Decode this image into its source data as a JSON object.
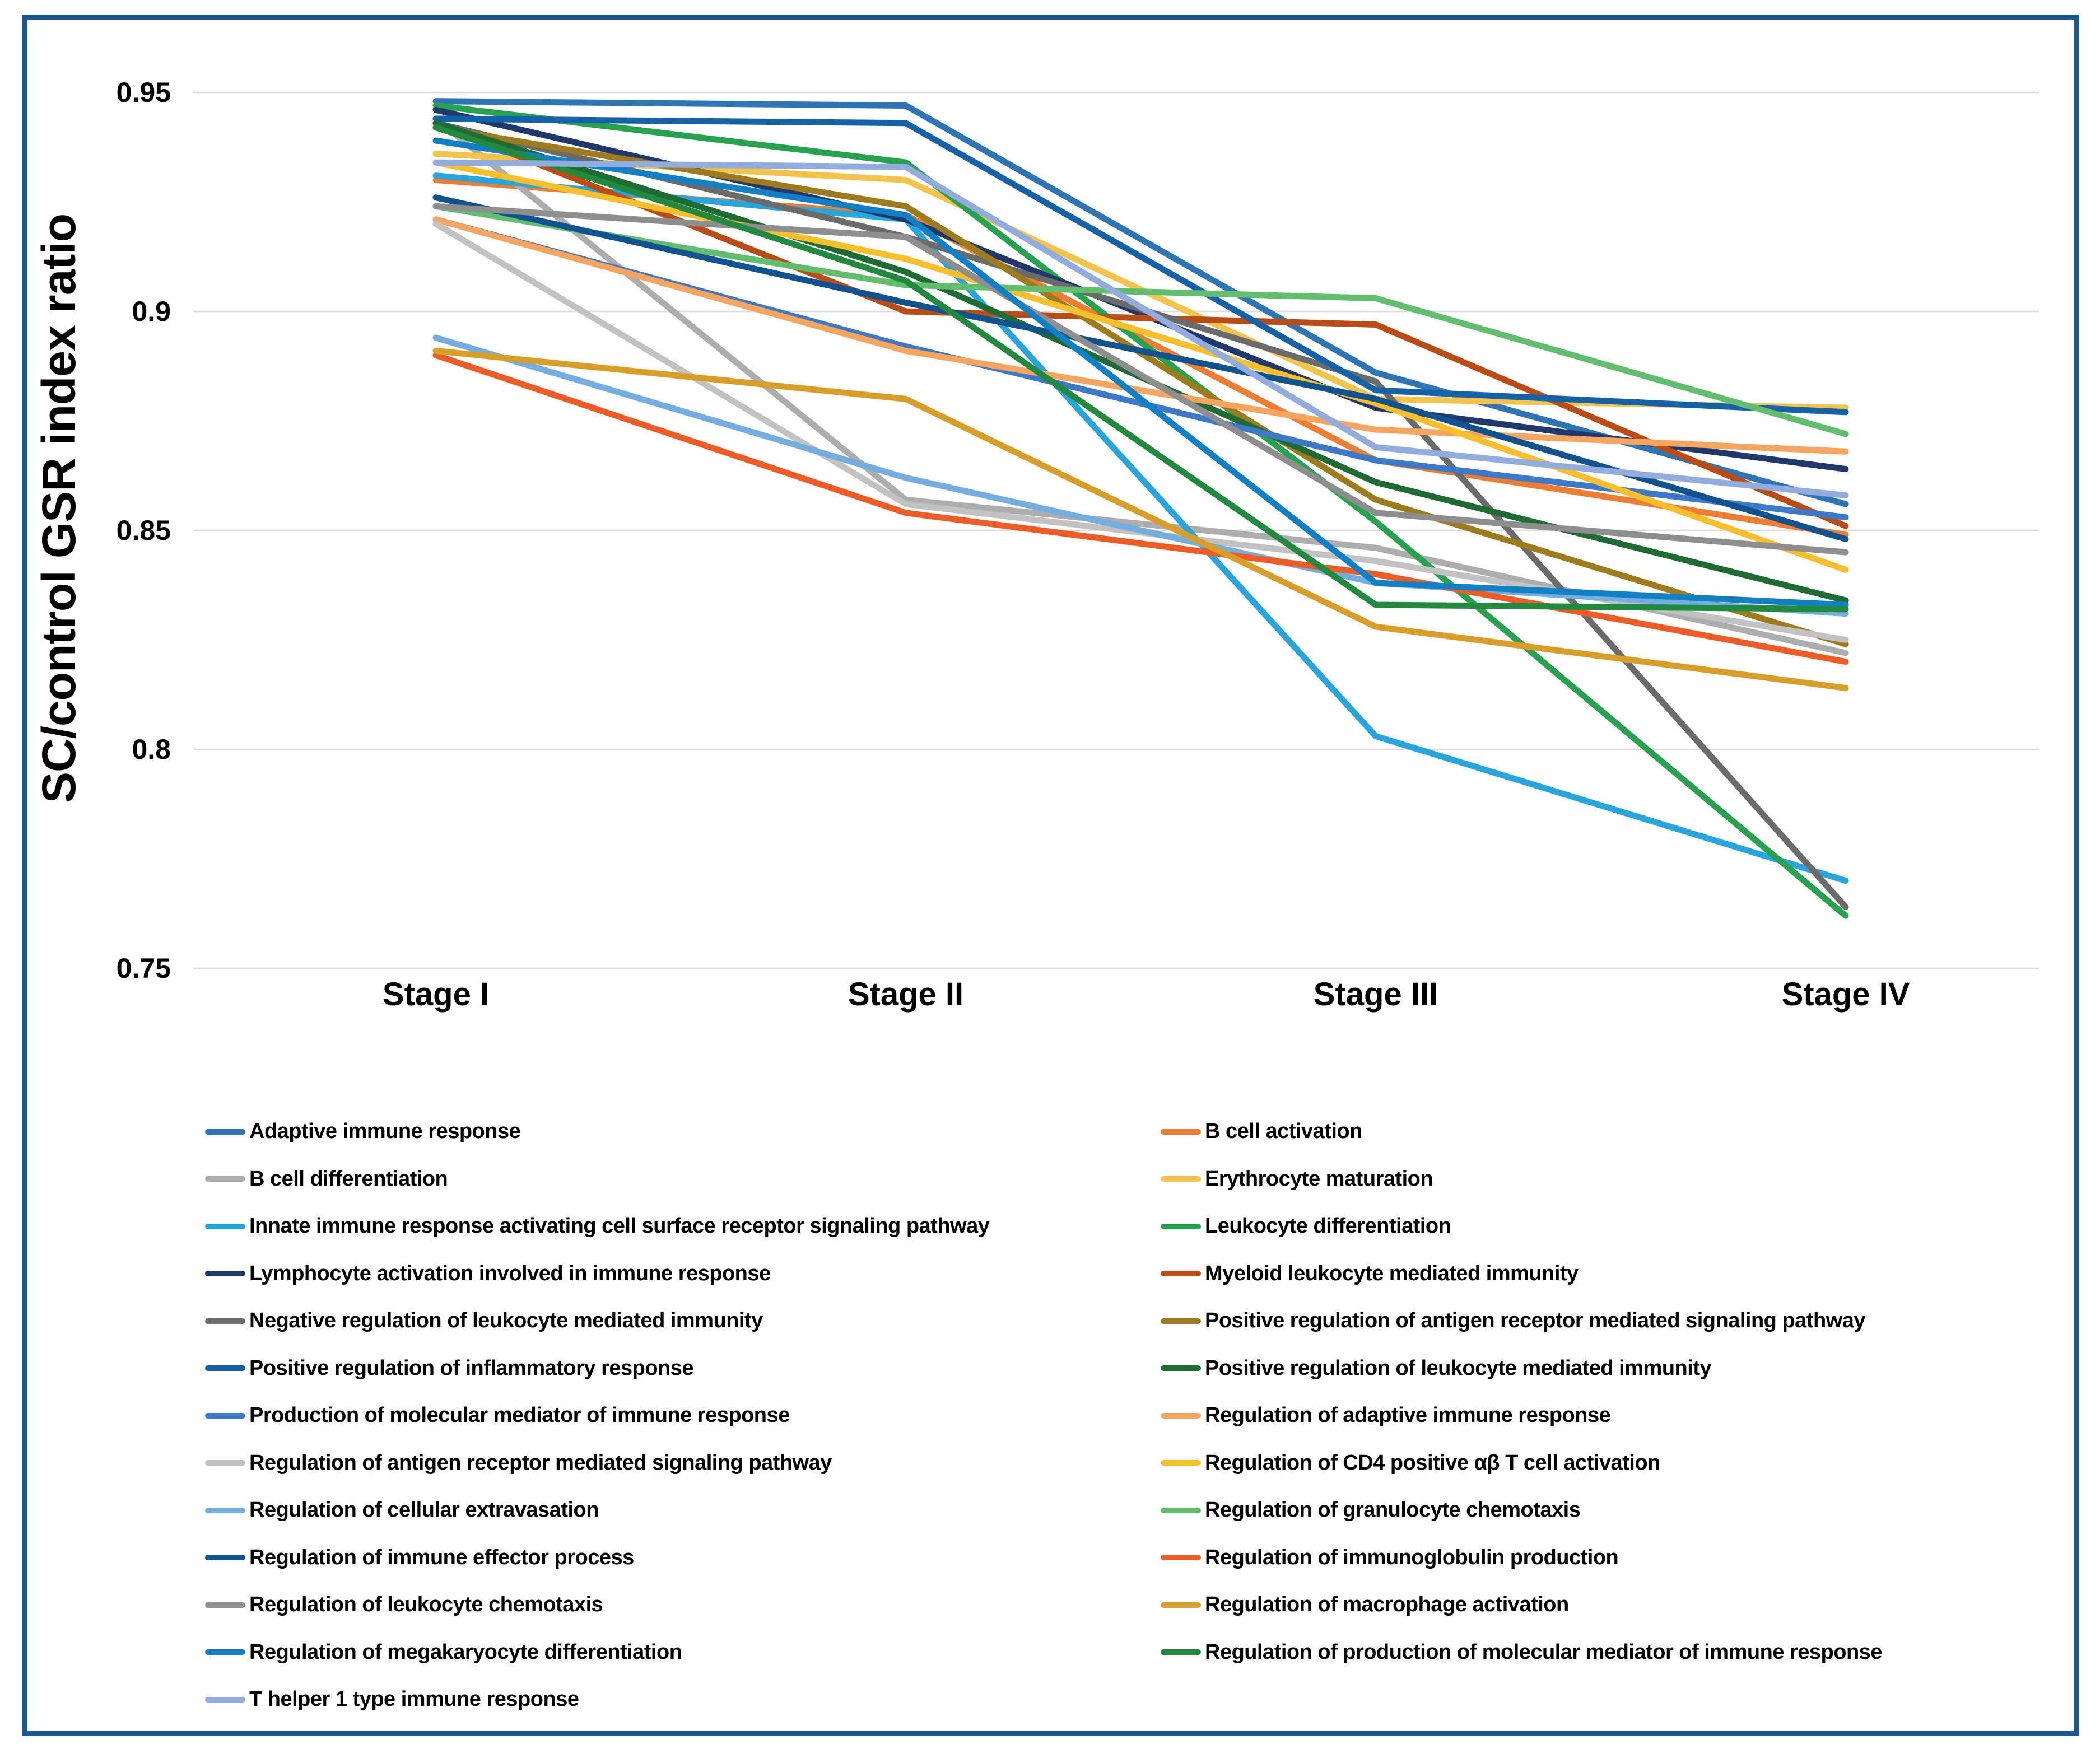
{
  "figure": {
    "border_color": "#1A5795",
    "background": "#FFFFFF"
  },
  "chart_data": {
    "type": "line",
    "title": "",
    "ylabel": "SC/control GSR index ratio",
    "xlabel": "",
    "categories": [
      "Stage I",
      "Stage II",
      "Stage III",
      "Stage IV"
    ],
    "ylim": [
      0.75,
      0.95
    ],
    "yticks": [
      {
        "label": "0.95",
        "value": 0.95
      },
      {
        "label": "0.9",
        "value": 0.9
      },
      {
        "label": "0.85",
        "value": 0.85
      },
      {
        "label": "0.8",
        "value": 0.8
      },
      {
        "label": "0.75",
        "value": 0.75
      }
    ],
    "grid": true,
    "legend_position": "bottom two-column",
    "series": [
      {
        "name": "Adaptive immune response",
        "color": "#2E75B6",
        "values": [
          0.948,
          0.947,
          0.886,
          0.856
        ]
      },
      {
        "name": "B cell activation",
        "color": "#ED7D31",
        "values": [
          0.93,
          0.922,
          0.866,
          0.849
        ]
      },
      {
        "name": "B cell differentiation",
        "color": "#ADADAD",
        "values": [
          0.944,
          0.857,
          0.846,
          0.822
        ]
      },
      {
        "name": "Erythrocyte maturation",
        "color": "#F4C34A",
        "values": [
          0.936,
          0.93,
          0.88,
          0.878
        ]
      },
      {
        "name": "Innate immune response activating cell surface receptor signaling pathway",
        "color": "#27A5DE",
        "values": [
          0.931,
          0.921,
          0.803,
          0.77
        ]
      },
      {
        "name": "Leukocyte differentiation",
        "color": "#27A34F",
        "values": [
          0.947,
          0.934,
          0.852,
          0.762
        ]
      },
      {
        "name": "Lymphocyte activation involved in immune response",
        "color": "#20386C",
        "values": [
          0.946,
          0.921,
          0.878,
          0.864
        ]
      },
      {
        "name": "Myeloid leukocyte mediated immunity",
        "color": "#BC4C16",
        "values": [
          0.943,
          0.9,
          0.897,
          0.851
        ]
      },
      {
        "name": "Negative regulation of leukocyte mediated immunity",
        "color": "#6B6B6B",
        "values": [
          0.943,
          0.917,
          0.884,
          0.764
        ]
      },
      {
        "name": "Positive regulation of antigen receptor mediated signaling pathway",
        "color": "#9E7B1D",
        "values": [
          0.942,
          0.924,
          0.857,
          0.824
        ]
      },
      {
        "name": "Positive regulation of inflammatory response",
        "color": "#1562A8",
        "values": [
          0.944,
          0.943,
          0.882,
          0.877
        ]
      },
      {
        "name": "Positive regulation of leukocyte mediated immunity",
        "color": "#1E6B33",
        "values": [
          0.943,
          0.909,
          0.861,
          0.834
        ]
      },
      {
        "name": "Production of molecular mediator of immune response",
        "color": "#3D79C9",
        "values": [
          0.921,
          0.892,
          0.866,
          0.853
        ]
      },
      {
        "name": "Regulation of adaptive immune response",
        "color": "#F6A561",
        "values": [
          0.921,
          0.891,
          0.873,
          0.868
        ]
      },
      {
        "name": "Regulation of antigen receptor mediated signaling pathway",
        "color": "#C2C2C2",
        "values": [
          0.92,
          0.856,
          0.843,
          0.825
        ]
      },
      {
        "name": "Regulation of CD4 positive αβ T cell activation",
        "color": "#F8BF2B",
        "values": [
          0.934,
          0.912,
          0.879,
          0.841
        ]
      },
      {
        "name": "Regulation of cellular extravasation",
        "color": "#74AEE0",
        "values": [
          0.894,
          0.862,
          0.838,
          0.831
        ]
      },
      {
        "name": "Regulation of granulocyte chemotaxis",
        "color": "#61BE6C",
        "values": [
          0.924,
          0.906,
          0.903,
          0.872
        ]
      },
      {
        "name": "Regulation of immune effector process",
        "color": "#10538F",
        "values": [
          0.926,
          0.902,
          0.88,
          0.848
        ]
      },
      {
        "name": "Regulation of immunoglobulin production",
        "color": "#EF5B25",
        "values": [
          0.89,
          0.854,
          0.84,
          0.82
        ]
      },
      {
        "name": "Regulation of leukocyte chemotaxis",
        "color": "#8E8E8E",
        "values": [
          0.924,
          0.917,
          0.854,
          0.845
        ]
      },
      {
        "name": "Regulation of macrophage activation",
        "color": "#D89E28",
        "values": [
          0.891,
          0.88,
          0.828,
          0.814
        ]
      },
      {
        "name": "Regulation of megakaryocyte differentiation",
        "color": "#1180C6",
        "values": [
          0.939,
          0.922,
          0.838,
          0.833
        ]
      },
      {
        "name": "Regulation of production of molecular mediator of immune response",
        "color": "#218A3E",
        "values": [
          0.942,
          0.907,
          0.833,
          0.832
        ]
      },
      {
        "name": "T helper 1 type immune response",
        "color": "#92ACDE",
        "values": [
          0.934,
          0.933,
          0.869,
          0.858
        ]
      }
    ]
  },
  "legend": {
    "left_column": [
      "Adaptive immune response",
      "B cell differentiation",
      "Innate immune response activating cell surface receptor signaling pathway",
      "Lymphocyte activation involved in immune response",
      "Negative regulation of leukocyte mediated immunity",
      "Positive regulation of inflammatory response",
      "Production of molecular mediator of immune response",
      "Regulation of antigen receptor mediated signaling pathway",
      "Regulation of cellular extravasation",
      "Regulation of immune effector process",
      "Regulation of leukocyte chemotaxis",
      "Regulation of megakaryocyte differentiation",
      "T helper 1 type immune response"
    ],
    "right_column": [
      "B cell activation",
      "Erythrocyte maturation",
      "Leukocyte differentiation",
      "Myeloid leukocyte mediated immunity",
      "Positive regulation of antigen receptor mediated signaling pathway",
      "Positive regulation of leukocyte mediated immunity",
      "Regulation of adaptive immune response",
      "Regulation of CD4 positive αβ T cell activation",
      "Regulation of granulocyte chemotaxis",
      "Regulation of immunoglobulin production",
      "Regulation of macrophage activation",
      "Regulation of production of molecular mediator of immune response"
    ]
  }
}
